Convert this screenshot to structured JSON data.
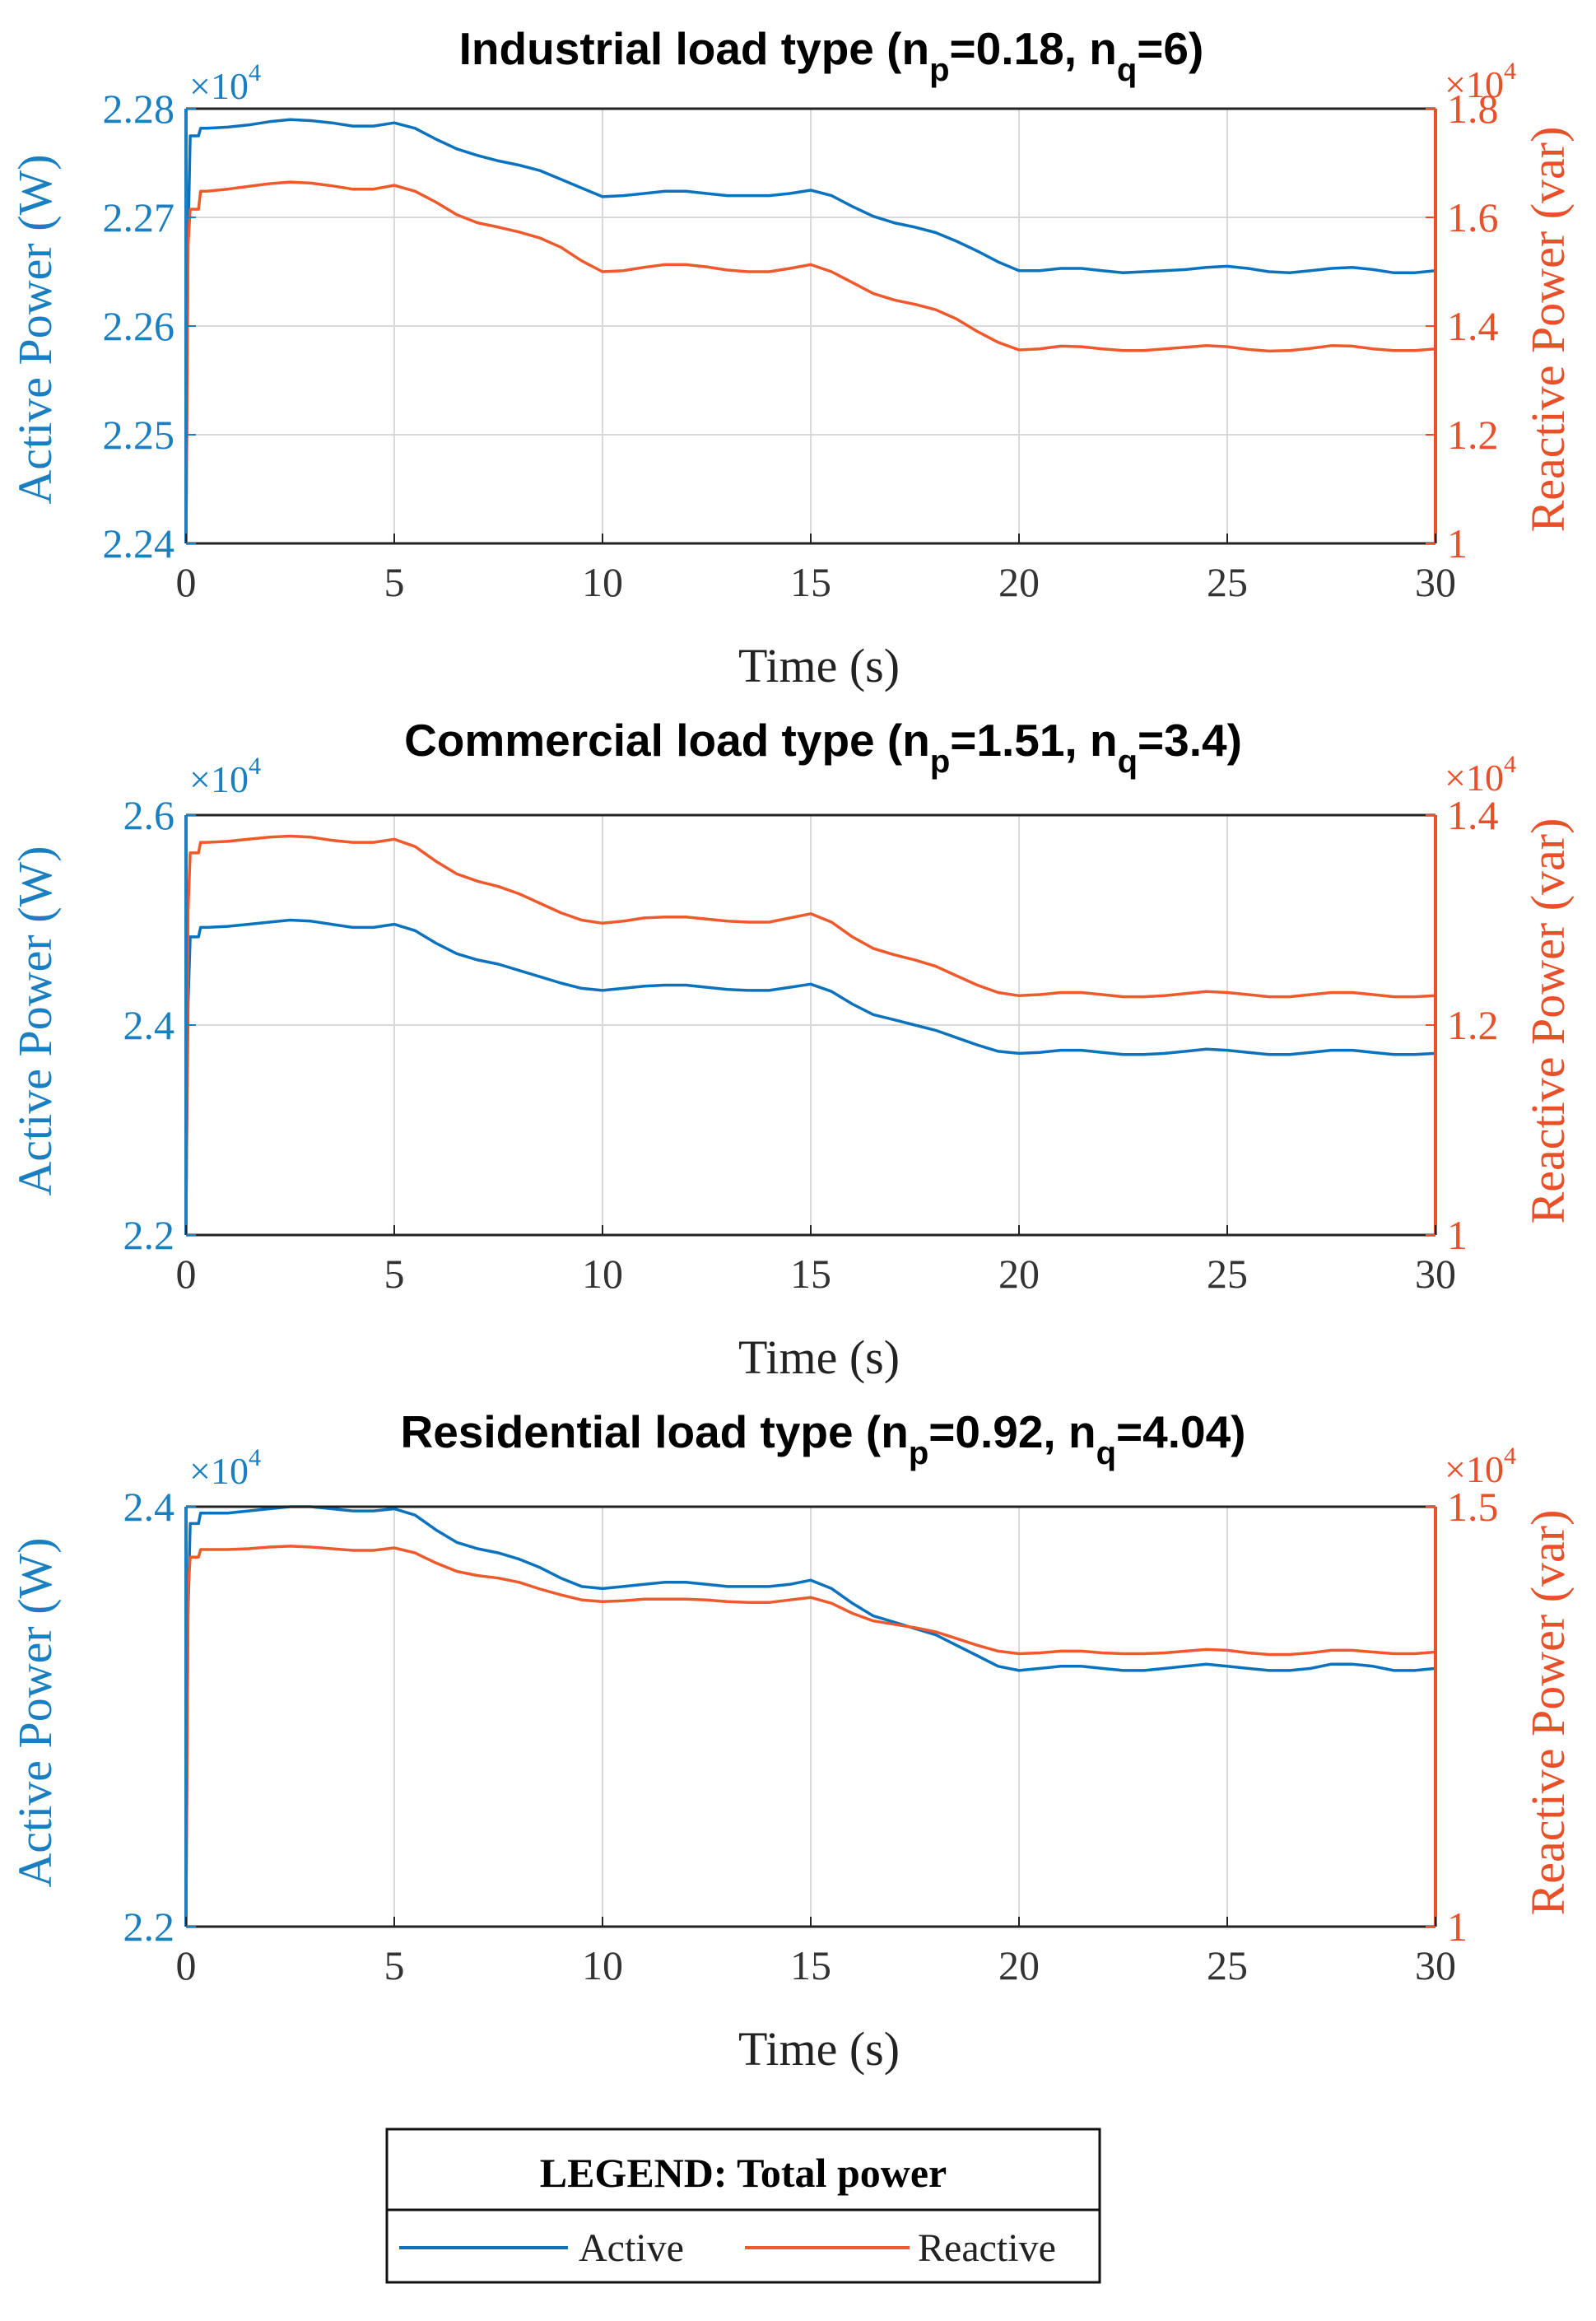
{
  "colors": {
    "active": "#0b72bd",
    "reactive": "#ee5a2c",
    "activeAxis": "#1a7fc1",
    "reactiveAxis": "#e8502a"
  },
  "chart_data": [
    {
      "type": "line",
      "title_main": "Industrial load type (n",
      "title_sub1": "p",
      "title_mid": "=0.18, n",
      "title_sub2": "q",
      "title_end": "=6)",
      "xlabel": "Time (s)",
      "ylabel_left": "Active Power (W)",
      "ylabel_right": "Reactive Power (var)",
      "multiplier_left": "×10",
      "multiplier_left_exp": "4",
      "multiplier_right": "×10",
      "multiplier_right_exp": "4",
      "xlim": [
        0,
        30
      ],
      "xticks": [
        0,
        5,
        10,
        15,
        20,
        25,
        30
      ],
      "ylim_left": [
        2.24,
        2.28
      ],
      "yticks_left": [
        2.24,
        2.25,
        2.26,
        2.27,
        2.28
      ],
      "ylim_right": [
        1.0,
        1.8
      ],
      "yticks_right": [
        1,
        1.2,
        1.4,
        1.6,
        1.8
      ],
      "series": [
        {
          "name": "Active",
          "axis": "left",
          "x": [
            0,
            0.05,
            0.1,
            0.3,
            0.35,
            0.5,
            1,
            1.5,
            2,
            2.5,
            3,
            3.5,
            4,
            4.5,
            5,
            5.5,
            6,
            6.5,
            7,
            7.5,
            8,
            8.5,
            9,
            9.5,
            10,
            10.5,
            11,
            11.5,
            12,
            12.5,
            13,
            13.5,
            14,
            14.5,
            15,
            15.5,
            16,
            16.5,
            17,
            17.5,
            18,
            18.5,
            19,
            19.5,
            20,
            20.5,
            21,
            21.5,
            22,
            22.5,
            23,
            23.5,
            24,
            24.5,
            25,
            25.5,
            26,
            26.5,
            27,
            27.5,
            28,
            28.5,
            29,
            29.5,
            30
          ],
          "values": [
            2.24,
            2.268,
            2.2775,
            2.2775,
            2.2782,
            2.2782,
            2.2783,
            2.2785,
            2.2788,
            2.279,
            2.2789,
            2.2787,
            2.2784,
            2.2784,
            2.2787,
            2.2782,
            2.2772,
            2.2763,
            2.2757,
            2.2752,
            2.2748,
            2.2743,
            2.2735,
            2.2727,
            2.2719,
            2.272,
            2.2722,
            2.2724,
            2.2724,
            2.2722,
            2.272,
            2.272,
            2.272,
            2.2722,
            2.2725,
            2.272,
            2.271,
            2.2701,
            2.2695,
            2.2691,
            2.2686,
            2.2678,
            2.2669,
            2.2659,
            2.2651,
            2.2651,
            2.2653,
            2.2653,
            2.2651,
            2.2649,
            2.265,
            2.2651,
            2.2652,
            2.2654,
            2.2655,
            2.2653,
            2.265,
            2.2649,
            2.2651,
            2.2653,
            2.2654,
            2.2652,
            2.2649,
            2.2649,
            2.2651
          ]
        },
        {
          "name": "Reactive",
          "axis": "right",
          "x": [
            0,
            0.05,
            0.1,
            0.3,
            0.35,
            0.5,
            1,
            1.5,
            2,
            2.5,
            3,
            3.5,
            4,
            4.5,
            5,
            5.5,
            6,
            6.5,
            7,
            7.5,
            8,
            8.5,
            9,
            9.5,
            10,
            10.5,
            11,
            11.5,
            12,
            12.5,
            13,
            13.5,
            14,
            14.5,
            15,
            15.5,
            16,
            16.5,
            17,
            17.5,
            18,
            18.5,
            19,
            19.5,
            20,
            20.5,
            21,
            21.5,
            22,
            22.5,
            23,
            23.5,
            24,
            24.5,
            25,
            25.5,
            26,
            26.5,
            27,
            27.5,
            28,
            28.5,
            29,
            29.5,
            30
          ],
          "values": [
            1.0,
            1.55,
            1.615,
            1.615,
            1.648,
            1.648,
            1.652,
            1.657,
            1.662,
            1.665,
            1.663,
            1.658,
            1.652,
            1.652,
            1.659,
            1.648,
            1.628,
            1.605,
            1.59,
            1.582,
            1.573,
            1.562,
            1.545,
            1.52,
            1.5,
            1.502,
            1.508,
            1.513,
            1.513,
            1.509,
            1.503,
            1.5,
            1.5,
            1.506,
            1.513,
            1.5,
            1.48,
            1.46,
            1.448,
            1.44,
            1.43,
            1.413,
            1.39,
            1.37,
            1.356,
            1.358,
            1.363,
            1.362,
            1.358,
            1.355,
            1.355,
            1.358,
            1.361,
            1.364,
            1.362,
            1.357,
            1.354,
            1.355,
            1.359,
            1.364,
            1.363,
            1.358,
            1.355,
            1.355,
            1.358
          ]
        }
      ]
    },
    {
      "type": "line",
      "title_main": "Commercial load type (n",
      "title_sub1": "p",
      "title_mid": "=1.51, n",
      "title_sub2": "q",
      "title_end": "=3.4)",
      "xlabel": "Time (s)",
      "ylabel_left": "Active Power (W)",
      "ylabel_right": "Reactive Power (var)",
      "multiplier_left": "×10",
      "multiplier_left_exp": "4",
      "multiplier_right": "×10",
      "multiplier_right_exp": "4",
      "xlim": [
        0,
        30
      ],
      "xticks": [
        0,
        5,
        10,
        15,
        20,
        25,
        30
      ],
      "ylim_left": [
        2.2,
        2.6
      ],
      "yticks_left": [
        2.2,
        2.4,
        2.6
      ],
      "ylim_right": [
        1.0,
        1.4
      ],
      "yticks_right": [
        1,
        1.2,
        1.4
      ],
      "series": [
        {
          "name": "Active",
          "axis": "left",
          "x": [
            0,
            0.05,
            0.1,
            0.3,
            0.35,
            0.5,
            1,
            1.5,
            2,
            2.5,
            3,
            3.5,
            4,
            4.5,
            5,
            5.5,
            6,
            6.5,
            7,
            7.5,
            8,
            8.5,
            9,
            9.5,
            10,
            10.5,
            11,
            11.5,
            12,
            12.5,
            13,
            13.5,
            14,
            14.5,
            15,
            15.5,
            16,
            16.5,
            17,
            17.5,
            18,
            18.5,
            19,
            19.5,
            20,
            20.5,
            21,
            21.5,
            22,
            22.5,
            23,
            23.5,
            24,
            24.5,
            25,
            25.5,
            26,
            26.5,
            27,
            27.5,
            28,
            28.5,
            29,
            29.5,
            30
          ],
          "values": [
            2.22,
            2.42,
            2.484,
            2.484,
            2.493,
            2.493,
            2.494,
            2.496,
            2.498,
            2.5,
            2.499,
            2.496,
            2.493,
            2.493,
            2.496,
            2.49,
            2.478,
            2.468,
            2.462,
            2.458,
            2.452,
            2.446,
            2.44,
            2.435,
            2.433,
            2.435,
            2.437,
            2.438,
            2.438,
            2.436,
            2.434,
            2.433,
            2.433,
            2.436,
            2.439,
            2.432,
            2.42,
            2.41,
            2.405,
            2.4,
            2.395,
            2.388,
            2.381,
            2.375,
            2.373,
            2.374,
            2.376,
            2.376,
            2.374,
            2.372,
            2.372,
            2.373,
            2.375,
            2.377,
            2.376,
            2.374,
            2.372,
            2.372,
            2.374,
            2.376,
            2.376,
            2.374,
            2.372,
            2.372,
            2.373
          ]
        },
        {
          "name": "Reactive",
          "axis": "right",
          "x": [
            0,
            0.05,
            0.1,
            0.3,
            0.35,
            0.5,
            1,
            1.5,
            2,
            2.5,
            3,
            3.5,
            4,
            4.5,
            5,
            5.5,
            6,
            6.5,
            7,
            7.5,
            8,
            8.5,
            9,
            9.5,
            10,
            10.5,
            11,
            11.5,
            12,
            12.5,
            13,
            13.5,
            14,
            14.5,
            15,
            15.5,
            16,
            16.5,
            17,
            17.5,
            18,
            18.5,
            19,
            19.5,
            20,
            20.5,
            21,
            21.5,
            22,
            22.5,
            23,
            23.5,
            24,
            24.5,
            25,
            25.5,
            26,
            26.5,
            27,
            27.5,
            28,
            28.5,
            29,
            29.5,
            30
          ],
          "values": [
            1.0,
            1.31,
            1.364,
            1.364,
            1.374,
            1.374,
            1.375,
            1.377,
            1.379,
            1.38,
            1.379,
            1.376,
            1.374,
            1.374,
            1.377,
            1.37,
            1.356,
            1.344,
            1.337,
            1.332,
            1.325,
            1.316,
            1.307,
            1.3,
            1.297,
            1.299,
            1.302,
            1.303,
            1.303,
            1.301,
            1.299,
            1.298,
            1.298,
            1.302,
            1.306,
            1.298,
            1.284,
            1.273,
            1.267,
            1.262,
            1.256,
            1.247,
            1.238,
            1.231,
            1.228,
            1.229,
            1.231,
            1.231,
            1.229,
            1.227,
            1.227,
            1.228,
            1.23,
            1.232,
            1.231,
            1.229,
            1.227,
            1.227,
            1.229,
            1.231,
            1.231,
            1.229,
            1.227,
            1.227,
            1.228
          ]
        }
      ]
    },
    {
      "type": "line",
      "title_main": "Residential load type (n",
      "title_sub1": "p",
      "title_mid": "=0.92, n",
      "title_sub2": "q",
      "title_end": "=4.04)",
      "xlabel": "Time (s)",
      "ylabel_left": "Active Power (W)",
      "ylabel_right": "Reactive Power (var)",
      "multiplier_left": "×10",
      "multiplier_left_exp": "4",
      "multiplier_right": "×10",
      "multiplier_right_exp": "4",
      "xlim": [
        0,
        30
      ],
      "xticks": [
        0,
        5,
        10,
        15,
        20,
        25,
        30
      ],
      "ylim_left": [
        2.2,
        2.4
      ],
      "yticks_left": [
        2.2,
        2.4
      ],
      "ylim_right": [
        1.0,
        1.5
      ],
      "yticks_right": [
        1,
        1.5
      ],
      "series": [
        {
          "name": "Active",
          "axis": "left",
          "x": [
            0,
            0.05,
            0.1,
            0.3,
            0.35,
            0.5,
            1,
            1.5,
            2,
            2.5,
            3,
            3.5,
            4,
            4.5,
            5,
            5.5,
            6,
            6.5,
            7,
            7.5,
            8,
            8.5,
            9,
            9.5,
            10,
            10.5,
            11,
            11.5,
            12,
            12.5,
            13,
            13.5,
            14,
            14.5,
            15,
            15.5,
            16,
            16.5,
            17,
            17.5,
            18,
            18.5,
            19,
            19.5,
            20,
            20.5,
            21,
            21.5,
            22,
            22.5,
            23,
            23.5,
            24,
            24.5,
            25,
            25.5,
            26,
            26.5,
            27,
            27.5,
            28,
            28.5,
            29,
            29.5,
            30
          ],
          "values": [
            2.21,
            2.35,
            2.392,
            2.392,
            2.397,
            2.397,
            2.397,
            2.398,
            2.399,
            2.4,
            2.4,
            2.399,
            2.398,
            2.398,
            2.399,
            2.396,
            2.389,
            2.383,
            2.38,
            2.378,
            2.375,
            2.371,
            2.366,
            2.362,
            2.361,
            2.362,
            2.363,
            2.364,
            2.364,
            2.363,
            2.362,
            2.362,
            2.362,
            2.363,
            2.365,
            2.361,
            2.354,
            2.348,
            2.345,
            2.342,
            2.339,
            2.334,
            2.329,
            2.324,
            2.322,
            2.323,
            2.324,
            2.324,
            2.323,
            2.322,
            2.322,
            2.323,
            2.324,
            2.325,
            2.324,
            2.323,
            2.322,
            2.322,
            2.323,
            2.325,
            2.325,
            2.324,
            2.322,
            2.322,
            2.323
          ]
        },
        {
          "name": "Reactive",
          "axis": "right",
          "x": [
            0,
            0.05,
            0.1,
            0.3,
            0.35,
            0.5,
            1,
            1.5,
            2,
            2.5,
            3,
            3.5,
            4,
            4.5,
            5,
            5.5,
            6,
            6.5,
            7,
            7.5,
            8,
            8.5,
            9,
            9.5,
            10,
            10.5,
            11,
            11.5,
            12,
            12.5,
            13,
            13.5,
            14,
            14.5,
            15,
            15.5,
            16,
            16.5,
            17,
            17.5,
            18,
            18.5,
            19,
            19.5,
            20,
            20.5,
            21,
            21.5,
            22,
            22.5,
            23,
            23.5,
            24,
            24.5,
            25,
            25.5,
            26,
            26.5,
            27,
            27.5,
            28,
            28.5,
            29,
            29.5,
            30
          ],
          "values": [
            1.0,
            1.4,
            1.44,
            1.44,
            1.449,
            1.449,
            1.449,
            1.45,
            1.452,
            1.453,
            1.452,
            1.45,
            1.448,
            1.448,
            1.451,
            1.445,
            1.433,
            1.423,
            1.418,
            1.415,
            1.41,
            1.402,
            1.395,
            1.389,
            1.387,
            1.388,
            1.39,
            1.39,
            1.39,
            1.389,
            1.387,
            1.386,
            1.386,
            1.389,
            1.392,
            1.385,
            1.373,
            1.364,
            1.36,
            1.356,
            1.351,
            1.343,
            1.335,
            1.328,
            1.325,
            1.326,
            1.328,
            1.328,
            1.326,
            1.325,
            1.325,
            1.326,
            1.328,
            1.33,
            1.329,
            1.326,
            1.324,
            1.324,
            1.326,
            1.329,
            1.329,
            1.327,
            1.325,
            1.325,
            1.327
          ]
        }
      ]
    }
  ],
  "legend": {
    "title": "LEGEND: Total power",
    "items": [
      "Active",
      "Reactive"
    ]
  }
}
